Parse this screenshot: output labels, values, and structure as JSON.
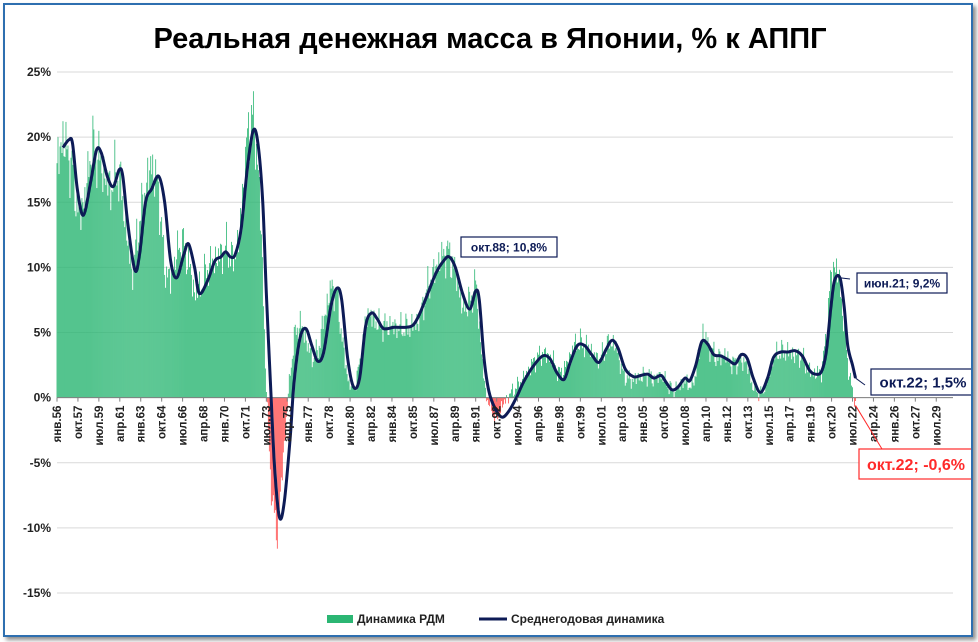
{
  "chart_data": {
    "type": "bar",
    "title": "Реальная денежная масса в Японии, % к АППГ",
    "ylim": [
      -15,
      25
    ],
    "y_ticks": [
      "25%",
      "20%",
      "15%",
      "10%",
      "5%",
      "0%",
      "-5%",
      "-10%",
      "-15%"
    ],
    "y_tick_values": [
      25,
      20,
      15,
      10,
      5,
      0,
      -5,
      -10,
      -15
    ],
    "grid": true,
    "legend_position": "bottom",
    "x_ticks": [
      "янв.56",
      "окт.57",
      "июл.59",
      "апр.61",
      "янв.63",
      "окт.64",
      "июл.66",
      "апр.68",
      "янв.70",
      "окт.71",
      "июл.73",
      "апр.75",
      "янв.77",
      "окт.78",
      "июл.80",
      "апр.82",
      "янв.84",
      "окт.85",
      "июл.87",
      "апр.89",
      "янв.91",
      "окт.92",
      "июл.94",
      "апр.96",
      "янв.98",
      "окт.99",
      "июл.01",
      "апр.03",
      "янв.05",
      "окт.06",
      "июл.08",
      "апр.10",
      "янв.12",
      "окт.13",
      "июл.15",
      "апр.17",
      "янв.19",
      "окт.20",
      "июл.22",
      "апр.24",
      "янв.26",
      "окт.27",
      "июл.29"
    ],
    "series": [
      {
        "name": "Динамика РДМ",
        "kind": "bar",
        "positive_color": "#2bb673",
        "negative_color": "#ff4d4d",
        "anchors": [
          [
            1956.0,
            18.0
          ],
          [
            1956.5,
            20.0
          ],
          [
            1957.3,
            17.5
          ],
          [
            1957.8,
            14.0
          ],
          [
            1958.4,
            15.5
          ],
          [
            1958.9,
            19.5
          ],
          [
            1959.5,
            18.5
          ],
          [
            1960.0,
            17.0
          ],
          [
            1960.5,
            16.0
          ],
          [
            1961.0,
            17.5
          ],
          [
            1961.4,
            16.0
          ],
          [
            1961.9,
            12.0
          ],
          [
            1962.3,
            9.5
          ],
          [
            1962.8,
            13.0
          ],
          [
            1963.4,
            16.0
          ],
          [
            1963.9,
            18.0
          ],
          [
            1964.5,
            16.0
          ],
          [
            1965.0,
            10.0
          ],
          [
            1965.5,
            9.0
          ],
          [
            1966.0,
            11.0
          ],
          [
            1966.5,
            12.0
          ],
          [
            1967.0,
            10.5
          ],
          [
            1967.5,
            8.0
          ],
          [
            1968.0,
            8.5
          ],
          [
            1968.6,
            10.0
          ],
          [
            1969.2,
            10.5
          ],
          [
            1969.7,
            11.0
          ],
          [
            1970.2,
            11.5
          ],
          [
            1970.7,
            10.5
          ],
          [
            1971.2,
            12.0
          ],
          [
            1971.8,
            19.0
          ],
          [
            1972.3,
            22.0
          ],
          [
            1972.8,
            18.0
          ],
          [
            1973.1,
            12.0
          ],
          [
            1973.4,
            3.0
          ],
          [
            1973.7,
            -3.5
          ],
          [
            1974.0,
            -8.0
          ],
          [
            1974.4,
            -10.5
          ],
          [
            1974.8,
            -6.0
          ],
          [
            1975.3,
            0.0
          ],
          [
            1975.8,
            4.5
          ],
          [
            1976.3,
            5.8
          ],
          [
            1976.8,
            4.5
          ],
          [
            1977.3,
            3.0
          ],
          [
            1977.8,
            3.5
          ],
          [
            1978.3,
            6.0
          ],
          [
            1978.9,
            8.5
          ],
          [
            1979.4,
            8.0
          ],
          [
            1979.9,
            4.0
          ],
          [
            1980.4,
            1.0
          ],
          [
            1980.9,
            0.8
          ],
          [
            1981.4,
            3.0
          ],
          [
            1981.9,
            6.5
          ],
          [
            1982.5,
            6.0
          ],
          [
            1983.0,
            5.5
          ],
          [
            1984.0,
            5.5
          ],
          [
            1985.0,
            5.3
          ],
          [
            1985.8,
            5.5
          ],
          [
            1986.3,
            6.0
          ],
          [
            1987.0,
            8.5
          ],
          [
            1987.8,
            10.2
          ],
          [
            1988.6,
            11.3
          ],
          [
            1989.4,
            9.5
          ],
          [
            1989.9,
            6.8
          ],
          [
            1990.6,
            7.5
          ],
          [
            1991.0,
            9.0
          ],
          [
            1991.4,
            4.5
          ],
          [
            1991.8,
            0.5
          ],
          [
            1992.3,
            -1.0
          ],
          [
            1992.8,
            -1.5
          ],
          [
            1993.3,
            -0.5
          ],
          [
            1993.9,
            0.3
          ],
          [
            1994.6,
            1.0
          ],
          [
            1995.4,
            2.0
          ],
          [
            1996.0,
            3.0
          ],
          [
            1996.8,
            3.4
          ],
          [
            1997.5,
            2.8
          ],
          [
            1998.0,
            1.8
          ],
          [
            1998.6,
            2.5
          ],
          [
            1999.2,
            4.0
          ],
          [
            1999.8,
            4.2
          ],
          [
            2000.5,
            3.8
          ],
          [
            2001.0,
            3.0
          ],
          [
            2001.6,
            3.2
          ],
          [
            2002.2,
            4.4
          ],
          [
            2002.8,
            3.8
          ],
          [
            2003.3,
            1.8
          ],
          [
            2004.0,
            1.3
          ],
          [
            2004.7,
            1.6
          ],
          [
            2005.3,
            1.8
          ],
          [
            2005.9,
            1.4
          ],
          [
            2006.5,
            1.8
          ],
          [
            2007.0,
            1.0
          ],
          [
            2007.5,
            0.5
          ],
          [
            2008.1,
            1.0
          ],
          [
            2008.6,
            1.3
          ],
          [
            2009.1,
            0.7
          ],
          [
            2009.6,
            3.0
          ],
          [
            2010.0,
            5.0
          ],
          [
            2010.6,
            3.8
          ],
          [
            2011.2,
            3.0
          ],
          [
            2011.8,
            3.3
          ],
          [
            2012.4,
            2.6
          ],
          [
            2013.0,
            2.8
          ],
          [
            2013.6,
            2.8
          ],
          [
            2014.2,
            0.8
          ],
          [
            2014.8,
            0.3
          ],
          [
            2015.4,
            1.2
          ],
          [
            2015.8,
            3.0
          ],
          [
            2016.4,
            3.5
          ],
          [
            2017.0,
            3.5
          ],
          [
            2017.6,
            3.3
          ],
          [
            2018.2,
            3.2
          ],
          [
            2018.8,
            2.2
          ],
          [
            2019.4,
            1.8
          ],
          [
            2019.9,
            2.0
          ],
          [
            2020.3,
            4.5
          ],
          [
            2020.6,
            8.5
          ],
          [
            2020.9,
            10.0
          ],
          [
            2021.2,
            10.0
          ],
          [
            2021.6,
            7.5
          ],
          [
            2021.9,
            4.5
          ],
          [
            2022.2,
            2.0
          ],
          [
            2022.5,
            0.5
          ],
          [
            2022.75,
            -0.6
          ]
        ]
      },
      {
        "name": "Среднегодовая динамика",
        "kind": "line",
        "color": "#0d1b56",
        "anchors": [
          [
            1956.5,
            19.2
          ],
          [
            1957.0,
            19.8
          ],
          [
            1957.3,
            19.5
          ],
          [
            1957.7,
            16.0
          ],
          [
            1958.2,
            14.0
          ],
          [
            1958.8,
            16.5
          ],
          [
            1959.3,
            19.0
          ],
          [
            1959.7,
            18.8
          ],
          [
            1960.2,
            17.0
          ],
          [
            1960.7,
            16.2
          ],
          [
            1961.2,
            17.5
          ],
          [
            1961.5,
            17.0
          ],
          [
            1961.9,
            13.5
          ],
          [
            1962.5,
            9.8
          ],
          [
            1962.9,
            11.0
          ],
          [
            1963.4,
            15.0
          ],
          [
            1963.9,
            16.0
          ],
          [
            1964.5,
            17.0
          ],
          [
            1965.0,
            15.0
          ],
          [
            1965.5,
            10.5
          ],
          [
            1966.0,
            9.2
          ],
          [
            1966.6,
            11.0
          ],
          [
            1967.0,
            11.8
          ],
          [
            1967.5,
            10.0
          ],
          [
            1967.9,
            8.0
          ],
          [
            1968.6,
            9.0
          ],
          [
            1969.2,
            10.5
          ],
          [
            1969.7,
            10.8
          ],
          [
            1970.1,
            11.2
          ],
          [
            1970.5,
            10.8
          ],
          [
            1970.9,
            11.0
          ],
          [
            1971.4,
            13.0
          ],
          [
            1971.9,
            17.5
          ],
          [
            1972.4,
            20.5
          ],
          [
            1972.8,
            19.5
          ],
          [
            1973.2,
            15.0
          ],
          [
            1973.5,
            8.0
          ],
          [
            1973.9,
            0.0
          ],
          [
            1974.2,
            -5.5
          ],
          [
            1974.6,
            -9.2
          ],
          [
            1975.0,
            -8.0
          ],
          [
            1975.5,
            -3.0
          ],
          [
            1975.8,
            1.0
          ],
          [
            1976.3,
            4.5
          ],
          [
            1976.8,
            5.3
          ],
          [
            1977.3,
            4.0
          ],
          [
            1977.8,
            2.8
          ],
          [
            1978.3,
            3.5
          ],
          [
            1978.9,
            7.0
          ],
          [
            1979.4,
            8.4
          ],
          [
            1979.8,
            7.5
          ],
          [
            1980.3,
            3.0
          ],
          [
            1980.8,
            0.8
          ],
          [
            1981.3,
            1.5
          ],
          [
            1981.8,
            5.5
          ],
          [
            1982.3,
            6.5
          ],
          [
            1982.8,
            6.0
          ],
          [
            1983.3,
            5.3
          ],
          [
            1984.2,
            5.4
          ],
          [
            1985.2,
            5.4
          ],
          [
            1985.8,
            5.6
          ],
          [
            1986.3,
            6.4
          ],
          [
            1987.0,
            8.0
          ],
          [
            1987.7,
            9.6
          ],
          [
            1988.4,
            10.6
          ],
          [
            1988.8,
            10.8
          ],
          [
            1989.3,
            10.0
          ],
          [
            1989.9,
            8.0
          ],
          [
            1990.5,
            6.8
          ],
          [
            1991.0,
            8.2
          ],
          [
            1991.3,
            7.5
          ],
          [
            1991.7,
            3.0
          ],
          [
            1992.1,
            0.5
          ],
          [
            1992.6,
            -0.8
          ],
          [
            1993.2,
            -1.5
          ],
          [
            1993.8,
            -1.0
          ],
          [
            1994.4,
            0.0
          ],
          [
            1995.0,
            1.2
          ],
          [
            1995.8,
            2.4
          ],
          [
            1996.6,
            3.2
          ],
          [
            1997.2,
            3.0
          ],
          [
            1997.8,
            1.9
          ],
          [
            1998.4,
            1.4
          ],
          [
            1998.9,
            2.7
          ],
          [
            1999.5,
            4.0
          ],
          [
            2000.1,
            4.0
          ],
          [
            2000.7,
            3.3
          ],
          [
            2001.3,
            2.7
          ],
          [
            2001.9,
            3.7
          ],
          [
            2002.4,
            4.4
          ],
          [
            2002.9,
            3.8
          ],
          [
            2003.5,
            2.2
          ],
          [
            2004.2,
            1.6
          ],
          [
            2004.8,
            1.7
          ],
          [
            2005.4,
            1.8
          ],
          [
            2005.9,
            1.5
          ],
          [
            2006.5,
            1.7
          ],
          [
            2006.9,
            1.2
          ],
          [
            2007.4,
            0.6
          ],
          [
            2007.9,
            0.8
          ],
          [
            2008.5,
            1.5
          ],
          [
            2008.9,
            1.3
          ],
          [
            2009.4,
            2.5
          ],
          [
            2009.9,
            4.3
          ],
          [
            2010.4,
            4.1
          ],
          [
            2010.9,
            3.3
          ],
          [
            2011.5,
            3.2
          ],
          [
            2012.1,
            2.9
          ],
          [
            2012.7,
            2.6
          ],
          [
            2013.2,
            3.3
          ],
          [
            2013.7,
            3.0
          ],
          [
            2014.2,
            1.5
          ],
          [
            2014.8,
            0.4
          ],
          [
            2015.4,
            1.5
          ],
          [
            2015.9,
            3.1
          ],
          [
            2016.5,
            3.5
          ],
          [
            2017.1,
            3.5
          ],
          [
            2017.7,
            3.6
          ],
          [
            2018.3,
            3.2
          ],
          [
            2018.9,
            2.1
          ],
          [
            2019.4,
            1.8
          ],
          [
            2019.9,
            2.0
          ],
          [
            2020.3,
            3.5
          ],
          [
            2020.7,
            7.0
          ],
          [
            2021.0,
            9.0
          ],
          [
            2021.45,
            9.2
          ],
          [
            2021.8,
            7.0
          ],
          [
            2022.1,
            4.0
          ],
          [
            2022.5,
            2.5
          ],
          [
            2022.75,
            1.5
          ]
        ]
      }
    ],
    "annotations": [
      {
        "label": "окт.88; 10,8%",
        "x": 1988.75,
        "y": 10.8,
        "color": "#0d1b56",
        "border": "#0d1b56"
      },
      {
        "label": "июн.21; 9,2%",
        "x": 2021.42,
        "y": 9.2,
        "color": "#0d1b56",
        "border": "#0d1b56"
      },
      {
        "label": "окт.22; 1,5%",
        "x": 2022.75,
        "y": 1.5,
        "color": "#0d1b56",
        "border": "#0d1b56"
      },
      {
        "label": "окт.22; -0,6%",
        "x": 2022.75,
        "y": -0.6,
        "color": "#ff2a2a",
        "border": "#ff2a2a"
      }
    ],
    "x_range": [
      1956.0,
      2030.9
    ]
  }
}
